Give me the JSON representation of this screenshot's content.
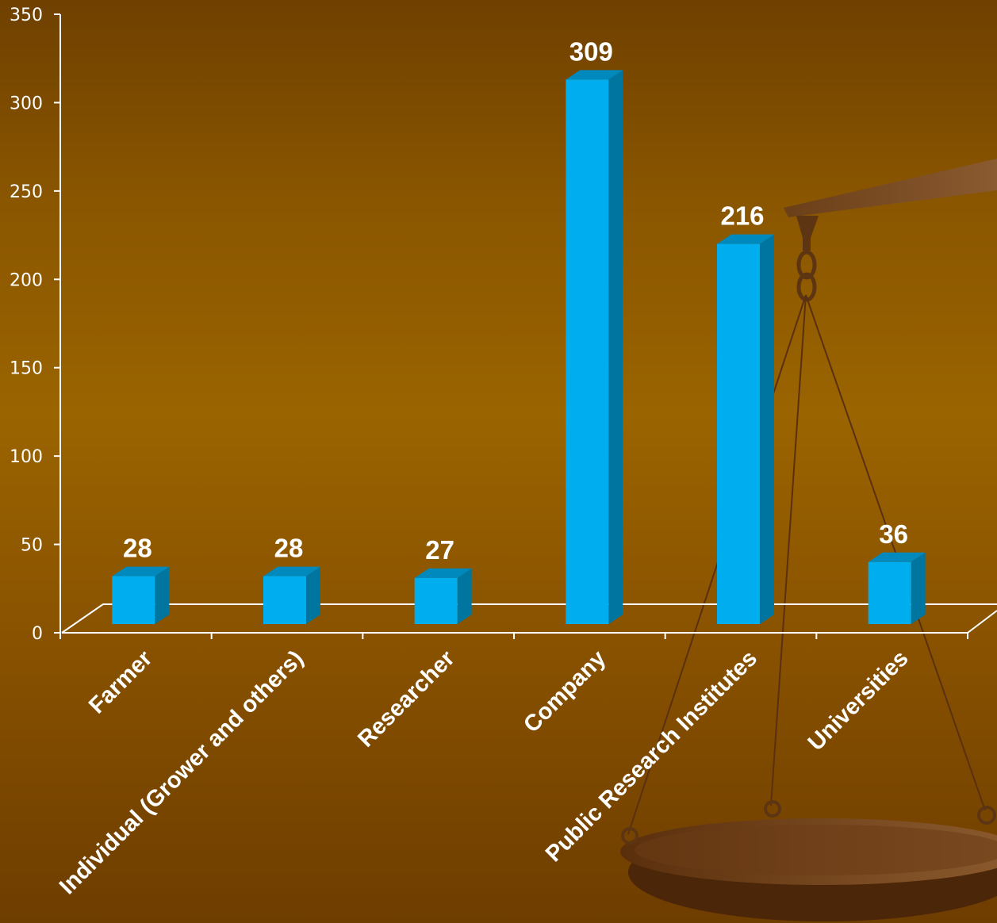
{
  "colors": {
    "bar_front": "#00AEEF",
    "bar_side": "#00759F",
    "bar_top": "#0089BD",
    "axis": "#FFFFFF"
  },
  "decoration": {
    "icon": "balance-scale-icon"
  },
  "chart_data": {
    "type": "bar",
    "title": "",
    "xlabel": "",
    "ylabel": "",
    "categories": [
      "Farmer",
      "Individual (Grower and others)",
      "Researcher",
      "Company",
      "Public Research Institutes",
      "Universities"
    ],
    "values": [
      28,
      28,
      27,
      309,
      216,
      36
    ],
    "data_labels": [
      "28",
      "28",
      "27",
      "309",
      "216",
      "36"
    ],
    "ylim": [
      0,
      350
    ],
    "yticks": [
      0,
      50,
      100,
      150,
      200,
      250,
      300,
      350
    ],
    "ytick_labels": [
      "0",
      "50",
      "100",
      "150",
      "200",
      "250",
      "300",
      "350"
    ],
    "grid": false,
    "legend": "none",
    "style": "3d-column"
  }
}
